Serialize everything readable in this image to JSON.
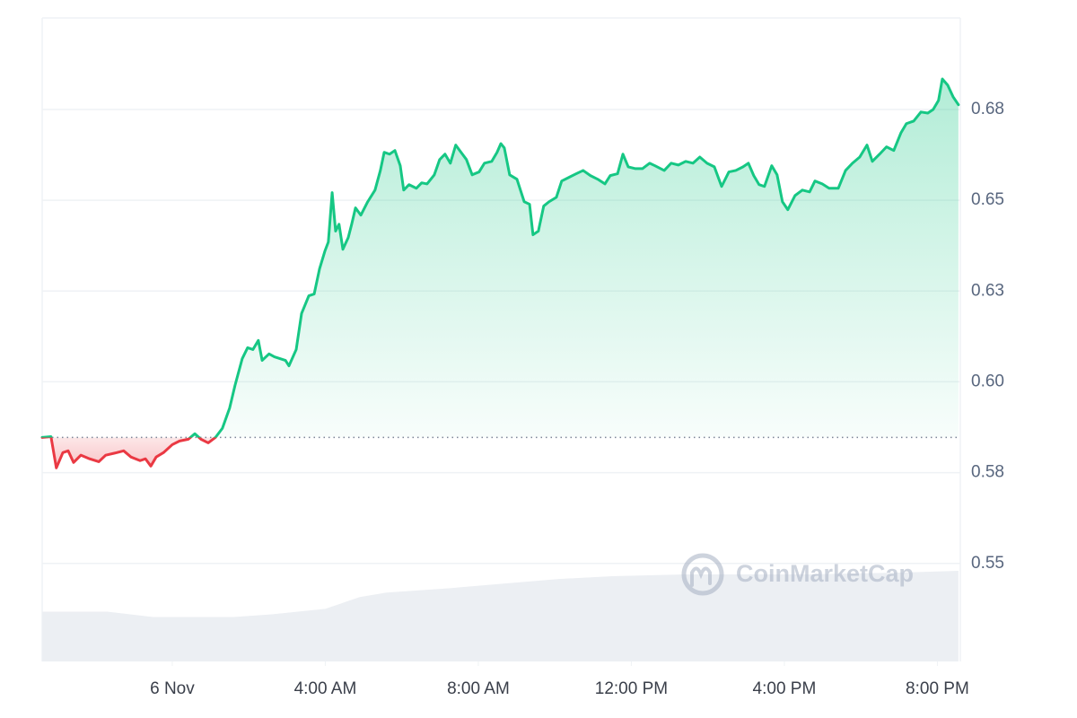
{
  "chart_data": {
    "type": "line",
    "watermark": "CoinMarketCap",
    "baseline": 0.5847,
    "up_color": "#16c784",
    "down_color": "#ea3943",
    "grid": true,
    "xlim": [
      -3.4,
      20.6
    ],
    "xticks": [
      {
        "value": 0,
        "label": "6 Nov"
      },
      {
        "value": 4,
        "label": "4:00 AM"
      },
      {
        "value": 8,
        "label": "8:00 AM"
      },
      {
        "value": 12,
        "label": "12:00 PM"
      },
      {
        "value": 16,
        "label": "4:00 PM"
      },
      {
        "value": 20,
        "label": "8:00 PM"
      }
    ],
    "ylim": [
      0.523,
      0.7002
    ],
    "yticks": [
      0.55,
      {
        "value": 0.575,
        "label": "0.58"
      },
      {
        "value": 0.6,
        "label": "0.60"
      },
      {
        "value": 0.625,
        "label": "0.63"
      },
      0.65,
      {
        "value": 0.675,
        "label": "0.68"
      }
    ],
    "x": [
      -3.4,
      -3.17,
      -3.03,
      -2.86,
      -2.72,
      -2.58,
      -2.39,
      -2.16,
      -1.92,
      -1.74,
      -1.45,
      -1.27,
      -1.08,
      -0.84,
      -0.7,
      -0.56,
      -0.42,
      -0.23,
      0,
      0.19,
      0.42,
      0.59,
      0.75,
      0.94,
      1.13,
      1.31,
      1.5,
      1.64,
      1.83,
      1.97,
      2.11,
      2.25,
      2.35,
      2.53,
      2.67,
      2.96,
      3.05,
      3.24,
      3.38,
      3.57,
      3.71,
      3.85,
      3.99,
      4.08,
      4.18,
      4.27,
      4.36,
      4.46,
      4.6,
      4.69,
      4.79,
      4.93,
      5.11,
      5.3,
      5.44,
      5.54,
      5.68,
      5.82,
      5.96,
      6.05,
      6.19,
      6.38,
      6.52,
      6.66,
      6.85,
      6.99,
      7.13,
      7.27,
      7.41,
      7.55,
      7.69,
      7.84,
      8.02,
      8.16,
      8.35,
      8.49,
      8.59,
      8.68,
      8.82,
      9.01,
      9.2,
      9.34,
      9.43,
      9.57,
      9.71,
      9.85,
      10.04,
      10.18,
      10.37,
      10.56,
      10.74,
      10.93,
      11.12,
      11.31,
      11.45,
      11.64,
      11.78,
      11.92,
      12.11,
      12.29,
      12.48,
      12.62,
      12.86,
      13.04,
      13.23,
      13.42,
      13.61,
      13.79,
      13.98,
      14.17,
      14.36,
      14.55,
      14.73,
      14.92,
      15.06,
      15.2,
      15.34,
      15.48,
      15.67,
      15.81,
      15.95,
      16.09,
      16.28,
      16.47,
      16.66,
      16.8,
      16.99,
      17.17,
      17.41,
      17.6,
      17.78,
      17.97,
      18.16,
      18.3,
      18.49,
      18.67,
      18.86,
      19.05,
      19.19,
      19.38,
      19.57,
      19.75,
      19.89,
      20.03,
      20.13,
      20.27,
      20.41,
      20.55
    ],
    "values": [
      0.5847,
      0.5849,
      0.5763,
      0.5805,
      0.581,
      0.5778,
      0.5798,
      0.5788,
      0.578,
      0.5798,
      0.5805,
      0.581,
      0.5793,
      0.5783,
      0.5788,
      0.5768,
      0.5793,
      0.5805,
      0.5827,
      0.5837,
      0.5842,
      0.5857,
      0.5842,
      0.5832,
      0.5847,
      0.5872,
      0.5928,
      0.599,
      0.6064,
      0.6094,
      0.6089,
      0.6114,
      0.6059,
      0.6077,
      0.6069,
      0.6059,
      0.6044,
      0.6089,
      0.6188,
      0.6237,
      0.6242,
      0.6311,
      0.636,
      0.6385,
      0.6521,
      0.6415,
      0.6434,
      0.6365,
      0.6397,
      0.6434,
      0.6479,
      0.6459,
      0.6496,
      0.6528,
      0.6582,
      0.6632,
      0.6627,
      0.6637,
      0.6595,
      0.6528,
      0.6543,
      0.6533,
      0.6548,
      0.6545,
      0.657,
      0.6612,
      0.6627,
      0.6602,
      0.6652,
      0.6632,
      0.6612,
      0.657,
      0.6578,
      0.6602,
      0.6607,
      0.6632,
      0.6656,
      0.6644,
      0.657,
      0.6558,
      0.6496,
      0.6489,
      0.6405,
      0.6415,
      0.6484,
      0.6496,
      0.6508,
      0.6553,
      0.6563,
      0.6573,
      0.6582,
      0.6568,
      0.6558,
      0.6545,
      0.6568,
      0.6573,
      0.6627,
      0.6592,
      0.6587,
      0.6587,
      0.6602,
      0.6595,
      0.6582,
      0.6602,
      0.6597,
      0.6607,
      0.6602,
      0.6619,
      0.6602,
      0.6592,
      0.6538,
      0.6578,
      0.6582,
      0.6592,
      0.6602,
      0.6568,
      0.6543,
      0.6538,
      0.6595,
      0.657,
      0.6496,
      0.6474,
      0.6513,
      0.6528,
      0.6523,
      0.6553,
      0.6545,
      0.6533,
      0.6533,
      0.6582,
      0.6602,
      0.6619,
      0.6652,
      0.6607,
      0.6627,
      0.6647,
      0.6637,
      0.6686,
      0.6711,
      0.6718,
      0.6743,
      0.674,
      0.675,
      0.6775,
      0.6834,
      0.6817,
      0.6785,
      0.6763
    ],
    "volume": {
      "color": "#eceff3",
      "x": [
        -3.4,
        -1.7,
        -0.5,
        1.6,
        2.6,
        4.0,
        4.9,
        5.6,
        7.3,
        8.7,
        10.1,
        11.5,
        13.4,
        16.6,
        19.0,
        20.55
      ],
      "values": [
        55,
        55,
        49,
        49,
        52,
        58,
        71,
        76,
        81,
        86,
        91,
        94,
        96,
        96,
        98,
        100
      ]
    }
  }
}
